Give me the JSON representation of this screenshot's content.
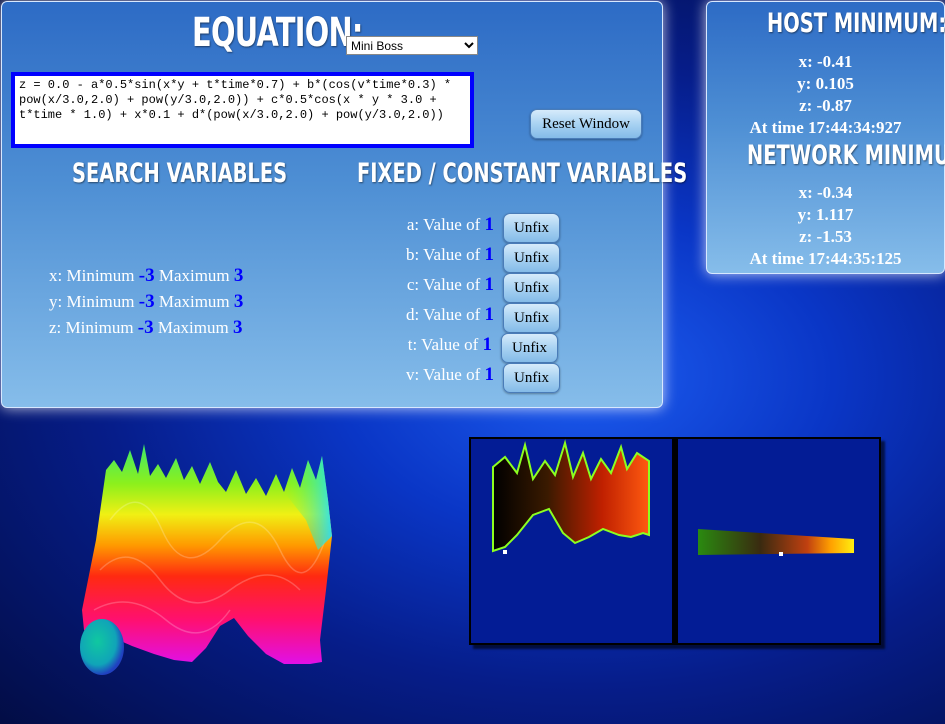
{
  "equation_panel": {
    "title": "EQUATION:",
    "preset_selected": "Mini Boss",
    "equation_text": "z = 0.0 - a*0.5*sin(x*y + t*time*0.7) + b*(cos(v*time*0.3) * pow(x/3.0,2.0) + pow(y/3.0,2.0)) + c*0.5*cos(x * y * 3.0 + t*time * 1.0) + x*0.1 + d*(pow(x/3.0,2.0) + pow(y/3.0,2.0))",
    "reset_label": "Reset Window"
  },
  "search_variables": {
    "title": "SEARCH VARIABLES",
    "minimum_label": "Minimum",
    "maximum_label": "Maximum",
    "rows": [
      {
        "var": "x:",
        "min": "-3",
        "max": "3"
      },
      {
        "var": "y:",
        "min": "-3",
        "max": "3"
      },
      {
        "var": "z:",
        "min": "-3",
        "max": "3"
      }
    ]
  },
  "fixed_variables": {
    "title": "FIXED / CONSTANT VARIABLES",
    "value_label": "Value of",
    "unfix_label": "Unfix",
    "rows": [
      {
        "var": "a:",
        "value": "1"
      },
      {
        "var": "b:",
        "value": "1"
      },
      {
        "var": "c:",
        "value": "1"
      },
      {
        "var": "d:",
        "value": "1"
      },
      {
        "var": "t:",
        "value": "1"
      },
      {
        "var": "v:",
        "value": "1"
      }
    ]
  },
  "host_minimum": {
    "title": "HOST MINIMUM:",
    "x": "x: -0.41",
    "y": "y: 0.105",
    "z": "z: -0.87",
    "time": "At time 17:44:34:927"
  },
  "network_minimum": {
    "title": "NETWORK MINIMUM:",
    "x": "x: -0.34",
    "y": "y: 1.117",
    "z": "z: -1.53",
    "time": "At time 17:44:35:125"
  },
  "colors": {
    "value_blue": "#0000ff",
    "background_blue": "#0a36c6",
    "viewport_blue": "#031c95"
  }
}
